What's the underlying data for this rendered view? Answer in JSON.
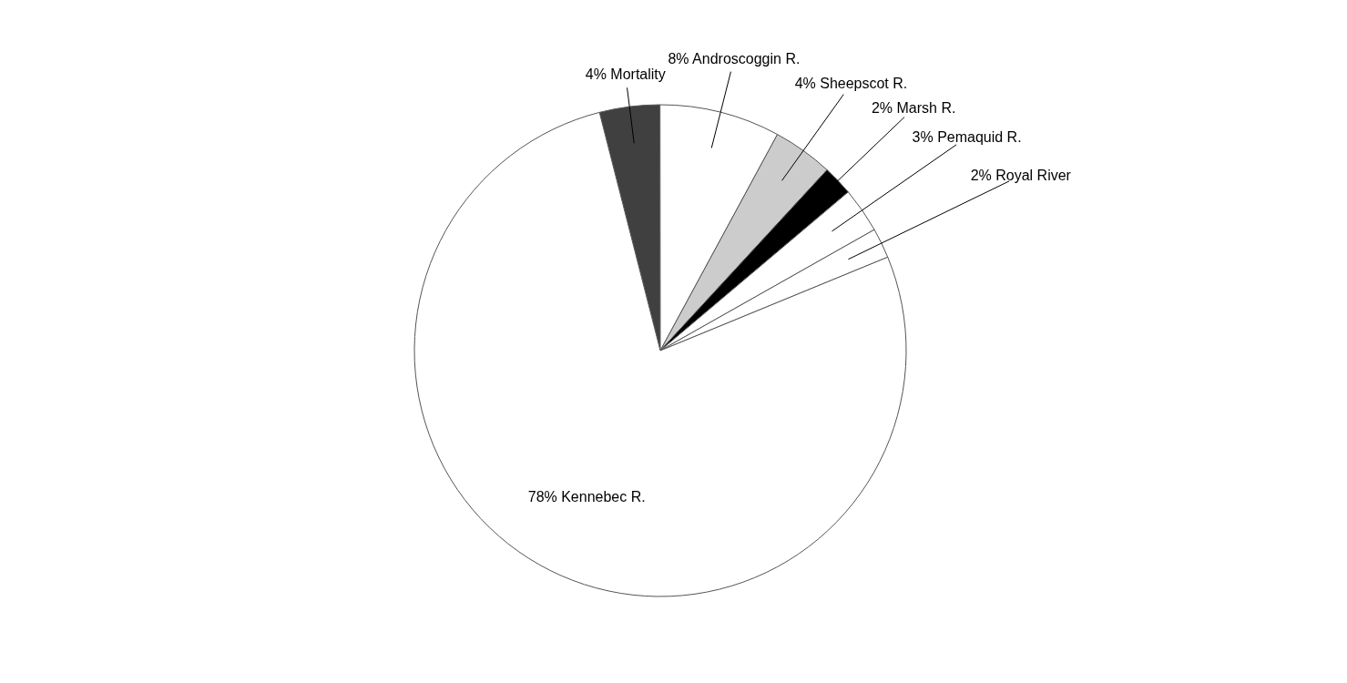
{
  "chart_data": {
    "type": "pie",
    "categories": [
      "Mortality",
      "Androscoggin R.",
      "Sheepscot R.",
      "Marsh R.",
      "Pemaquid R.",
      "Royal River",
      "Kennebec R."
    ],
    "values": [
      4,
      8,
      4,
      2,
      3,
      2,
      78
    ],
    "value_labels": [
      "4%",
      "8%",
      "4%",
      "2%",
      "3%",
      "2%",
      "78%"
    ],
    "colors": [
      "#404040",
      "#ffffff",
      "#cccccc",
      "#000000",
      "#ffffff",
      "#ffffff",
      "#ffffff"
    ]
  }
}
